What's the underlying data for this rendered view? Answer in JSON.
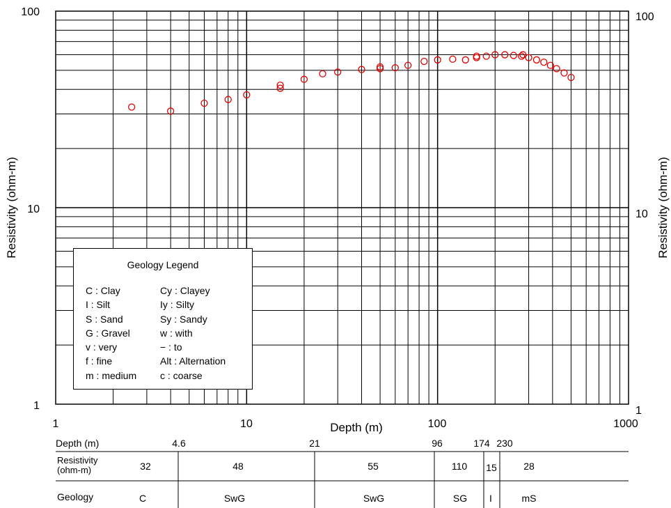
{
  "chart_data": {
    "type": "scatter",
    "xscale": "log",
    "yscale": "log",
    "xlim": [
      1,
      1000
    ],
    "ylim": [
      1,
      100
    ],
    "xlabel": "Depth (m)",
    "ylabel_left": "Resistivity (ohm-m)",
    "ylabel_right": "Resistivity (ohm-m)",
    "x_tick_labels": [
      "1",
      "10",
      "100",
      "1000"
    ],
    "y_tick_labels": [
      "1",
      "10",
      "100"
    ],
    "grid": true,
    "marker_color": "#e00000",
    "marker": "open-circle",
    "points": [
      {
        "x": 2.5,
        "y": 32.5
      },
      {
        "x": 4,
        "y": 31
      },
      {
        "x": 6,
        "y": 34
      },
      {
        "x": 8,
        "y": 35.5
      },
      {
        "x": 10,
        "y": 37.5
      },
      {
        "x": 15,
        "y": 40.5
      },
      {
        "x": 15,
        "y": 42
      },
      {
        "x": 20,
        "y": 45
      },
      {
        "x": 25,
        "y": 48
      },
      {
        "x": 30,
        "y": 49
      },
      {
        "x": 40,
        "y": 50.5
      },
      {
        "x": 50,
        "y": 51
      },
      {
        "x": 50,
        "y": 52
      },
      {
        "x": 60,
        "y": 51.5
      },
      {
        "x": 70,
        "y": 53
      },
      {
        "x": 85,
        "y": 55.5
      },
      {
        "x": 100,
        "y": 56.5
      },
      {
        "x": 120,
        "y": 57
      },
      {
        "x": 140,
        "y": 56.5
      },
      {
        "x": 160,
        "y": 58
      },
      {
        "x": 160,
        "y": 59
      },
      {
        "x": 180,
        "y": 59
      },
      {
        "x": 200,
        "y": 60
      },
      {
        "x": 225,
        "y": 60
      },
      {
        "x": 250,
        "y": 59.5
      },
      {
        "x": 275,
        "y": 59
      },
      {
        "x": 280,
        "y": 60
      },
      {
        "x": 300,
        "y": 58
      },
      {
        "x": 330,
        "y": 56.5
      },
      {
        "x": 360,
        "y": 55
      },
      {
        "x": 390,
        "y": 53
      },
      {
        "x": 420,
        "y": 51
      },
      {
        "x": 460,
        "y": 48.5
      },
      {
        "x": 500,
        "y": 46
      }
    ]
  },
  "legend": {
    "title": "Geology Legend",
    "left_items": [
      "C : Clay",
      "I : Silt",
      "S : Sand",
      "G : Gravel",
      "v : very",
      "f : fine",
      "m : medium"
    ],
    "right_items": [
      "Cy : Clayey",
      "Iy : Silty",
      "Sy : Sandy",
      "w : with",
      "− : to",
      "Alt : Alternation",
      "c : coarse"
    ]
  },
  "strip_log": {
    "depth_label": "Depth (m)",
    "depth_marks": [
      "4.6",
      "21",
      "96",
      "174",
      "230"
    ],
    "resistivity_label_line1": "Resistivity",
    "resistivity_label_line2": "(ohm-m)",
    "resistivities": [
      "32",
      "48",
      "55",
      "110",
      "15",
      "28"
    ],
    "geology_label": "Geology",
    "geology": [
      "C",
      "SwG",
      "SwG",
      "SG",
      "I",
      "mS"
    ]
  }
}
